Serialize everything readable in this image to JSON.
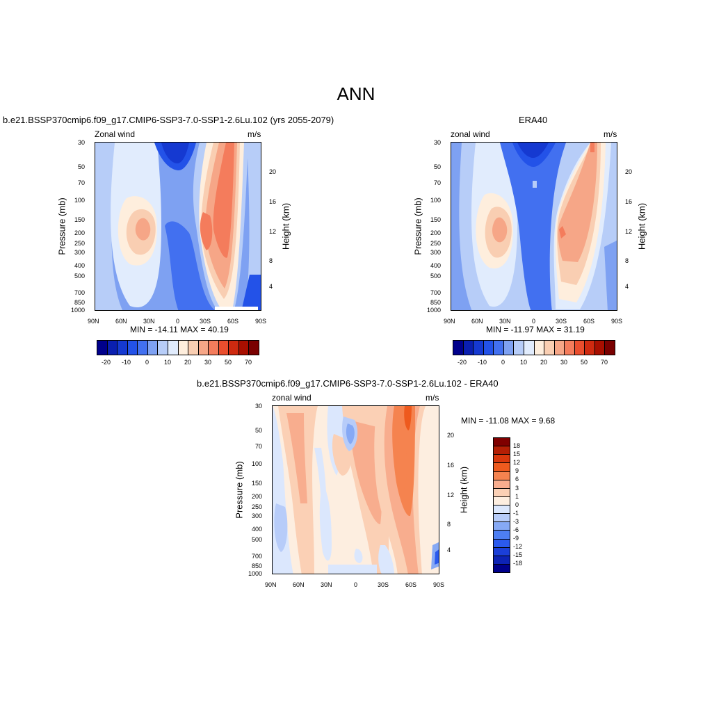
{
  "figure": {
    "title": "ANN"
  },
  "colors": {
    "abs_scale": [
      "#00008b",
      "#0a1fb0",
      "#1539d1",
      "#2352e8",
      "#4270f0",
      "#7ea1f2",
      "#b7cdf8",
      "#e1ecfd",
      "#feeedd",
      "#f9ceb2",
      "#f6a687",
      "#f47c5c",
      "#ea4e2e",
      "#cf2a10",
      "#a80f00",
      "#7a0000"
    ],
    "diff_scale": [
      "#00008b",
      "#0d23b5",
      "#1b3fd8",
      "#2b5aed",
      "#4d7ef3",
      "#86a9f5",
      "#b7ccf9",
      "#dbe7fd",
      "#fdeee0",
      "#fbd0b5",
      "#f8ad8e",
      "#f5834f",
      "#ee5a1e",
      "#d9380d",
      "#b41f05",
      "#7f0000"
    ]
  },
  "chart_data": [
    {
      "id": "model",
      "type": "heatmap",
      "title": "b.e21.BSSP370cmip6.f09_g17.CMIP6-SSP3-7.0-SSP1-2.6Lu.102 (yrs 2055-2079)",
      "left_label": "Zonal wind",
      "right_label": "m/s",
      "ylabel": "Pressure (mb)",
      "ylabel_right": "Height (km)",
      "x_ticks": [
        "90N",
        "60N",
        "30N",
        "0",
        "30S",
        "60S",
        "90S"
      ],
      "y_ticks": [
        "30",
        "50",
        "70",
        "100",
        "150",
        "200",
        "250",
        "300",
        "400",
        "500",
        "700",
        "850",
        "1000"
      ],
      "y_right_ticks": [
        "20",
        "16",
        "12",
        "8",
        "4"
      ],
      "stats": "MIN = -14.11  MAX =  40.19",
      "colorbar_labels": [
        "-20",
        "-10",
        "0",
        "10",
        "20",
        "30",
        "50",
        "70"
      ]
    },
    {
      "id": "obs",
      "type": "heatmap",
      "title": "ERA40",
      "left_label": "zonal wind",
      "right_label": "m/s",
      "ylabel": "Pressure (mb)",
      "ylabel_right": "Height (km)",
      "x_ticks": [
        "90N",
        "60N",
        "30N",
        "0",
        "30S",
        "60S",
        "90S"
      ],
      "y_ticks": [
        "30",
        "50",
        "70",
        "100",
        "150",
        "200",
        "250",
        "300",
        "400",
        "500",
        "700",
        "850",
        "1000"
      ],
      "y_right_ticks": [
        "20",
        "16",
        "12",
        "8",
        "4"
      ],
      "stats": "MIN = -11.97  MAX =  31.19",
      "colorbar_labels": [
        "-20",
        "-10",
        "0",
        "10",
        "20",
        "30",
        "50",
        "70"
      ]
    },
    {
      "id": "diff",
      "type": "heatmap",
      "title": "b.e21.BSSP370cmip6.f09_g17.CMIP6-SSP3-7.0-SSP1-2.6Lu.102 - ERA40",
      "left_label": "zonal wind",
      "right_label": "m/s",
      "ylabel": "Pressure (mb)",
      "ylabel_right": "Height (km)",
      "x_ticks": [
        "90N",
        "60N",
        "30N",
        "0",
        "30S",
        "60S",
        "90S"
      ],
      "y_ticks": [
        "30",
        "50",
        "70",
        "100",
        "150",
        "200",
        "250",
        "300",
        "400",
        "500",
        "700",
        "850",
        "1000"
      ],
      "y_right_ticks": [
        "20",
        "16",
        "12",
        "8",
        "4"
      ],
      "stats": "MIN = -11.08  MAX =   9.68",
      "colorbar_labels": [
        "18",
        "15",
        "12",
        "9",
        "6",
        "3",
        "1",
        "0",
        "-1",
        "-3",
        "-6",
        "-9",
        "-12",
        "-15",
        "-18"
      ]
    }
  ]
}
